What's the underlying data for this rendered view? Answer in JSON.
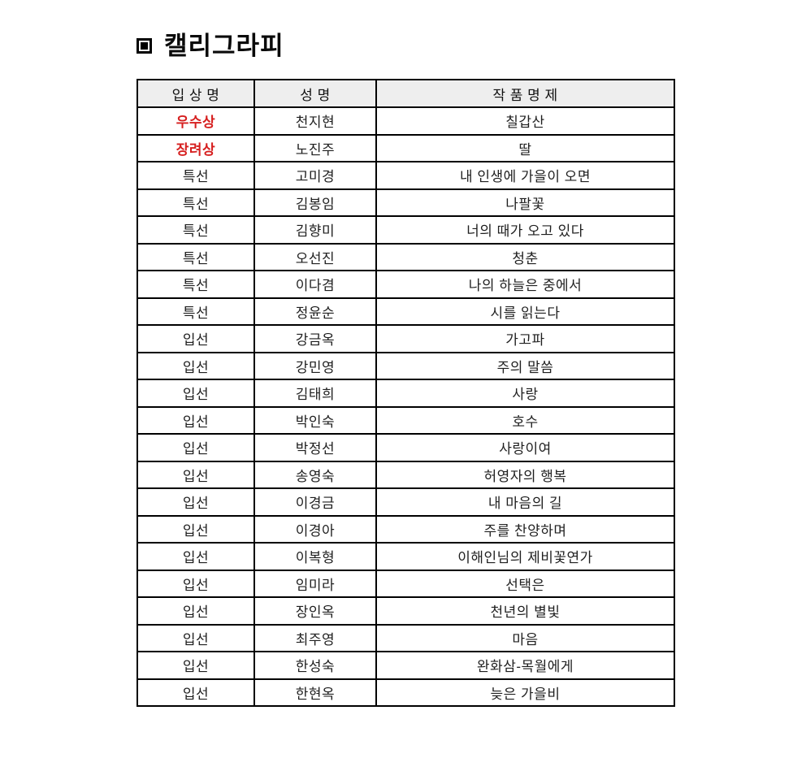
{
  "title": {
    "bullet_icon": "square-in-square-bullet",
    "text": "캘리그라피"
  },
  "colors": {
    "accent_red": "#d61f1f",
    "header_bg": "#eeeeee",
    "border": "#000000",
    "text": "#1f1f1f"
  },
  "table": {
    "columns": [
      {
        "key": "award",
        "label": "입 상 명"
      },
      {
        "key": "name",
        "label": "성 명"
      },
      {
        "key": "title",
        "label": "작 품 명 제"
      }
    ],
    "rows": [
      {
        "award": "우수상",
        "name": "천지현",
        "title": "칠갑산",
        "highlight": true
      },
      {
        "award": "장려상",
        "name": "노진주",
        "title": "딸",
        "highlight": true
      },
      {
        "award": "특선",
        "name": "고미경",
        "title": "내 인생에 가을이 오면",
        "highlight": false
      },
      {
        "award": "특선",
        "name": "김봉임",
        "title": "나팔꽃",
        "highlight": false
      },
      {
        "award": "특선",
        "name": "김향미",
        "title": "너의 때가 오고 있다",
        "highlight": false
      },
      {
        "award": "특선",
        "name": "오선진",
        "title": "청춘",
        "highlight": false
      },
      {
        "award": "특선",
        "name": "이다겸",
        "title": "나의 하늘은 중에서",
        "highlight": false
      },
      {
        "award": "특선",
        "name": "정윤순",
        "title": "시를 읽는다",
        "highlight": false
      },
      {
        "award": "입선",
        "name": "강금옥",
        "title": "가고파",
        "highlight": false
      },
      {
        "award": "입선",
        "name": "강민영",
        "title": "주의 말씀",
        "highlight": false
      },
      {
        "award": "입선",
        "name": "김태희",
        "title": "사랑",
        "highlight": false
      },
      {
        "award": "입선",
        "name": "박인숙",
        "title": "호수",
        "highlight": false
      },
      {
        "award": "입선",
        "name": "박정선",
        "title": "사랑이여",
        "highlight": false
      },
      {
        "award": "입선",
        "name": "송영숙",
        "title": "허영자의 행복",
        "highlight": false
      },
      {
        "award": "입선",
        "name": "이경금",
        "title": "내 마음의 길",
        "highlight": false
      },
      {
        "award": "입선",
        "name": "이경아",
        "title": "주를 찬양하며",
        "highlight": false
      },
      {
        "award": "입선",
        "name": "이복형",
        "title": "이해인님의 제비꽃연가",
        "highlight": false
      },
      {
        "award": "입선",
        "name": "임미라",
        "title": "선택은",
        "highlight": false
      },
      {
        "award": "입선",
        "name": "장인옥",
        "title": "천년의 별빛",
        "highlight": false
      },
      {
        "award": "입선",
        "name": "최주영",
        "title": "마음",
        "highlight": false
      },
      {
        "award": "입선",
        "name": "한성숙",
        "title": "완화삼-목월에게",
        "highlight": false
      },
      {
        "award": "입선",
        "name": "한현옥",
        "title": "늦은 가을비",
        "highlight": false
      }
    ]
  }
}
